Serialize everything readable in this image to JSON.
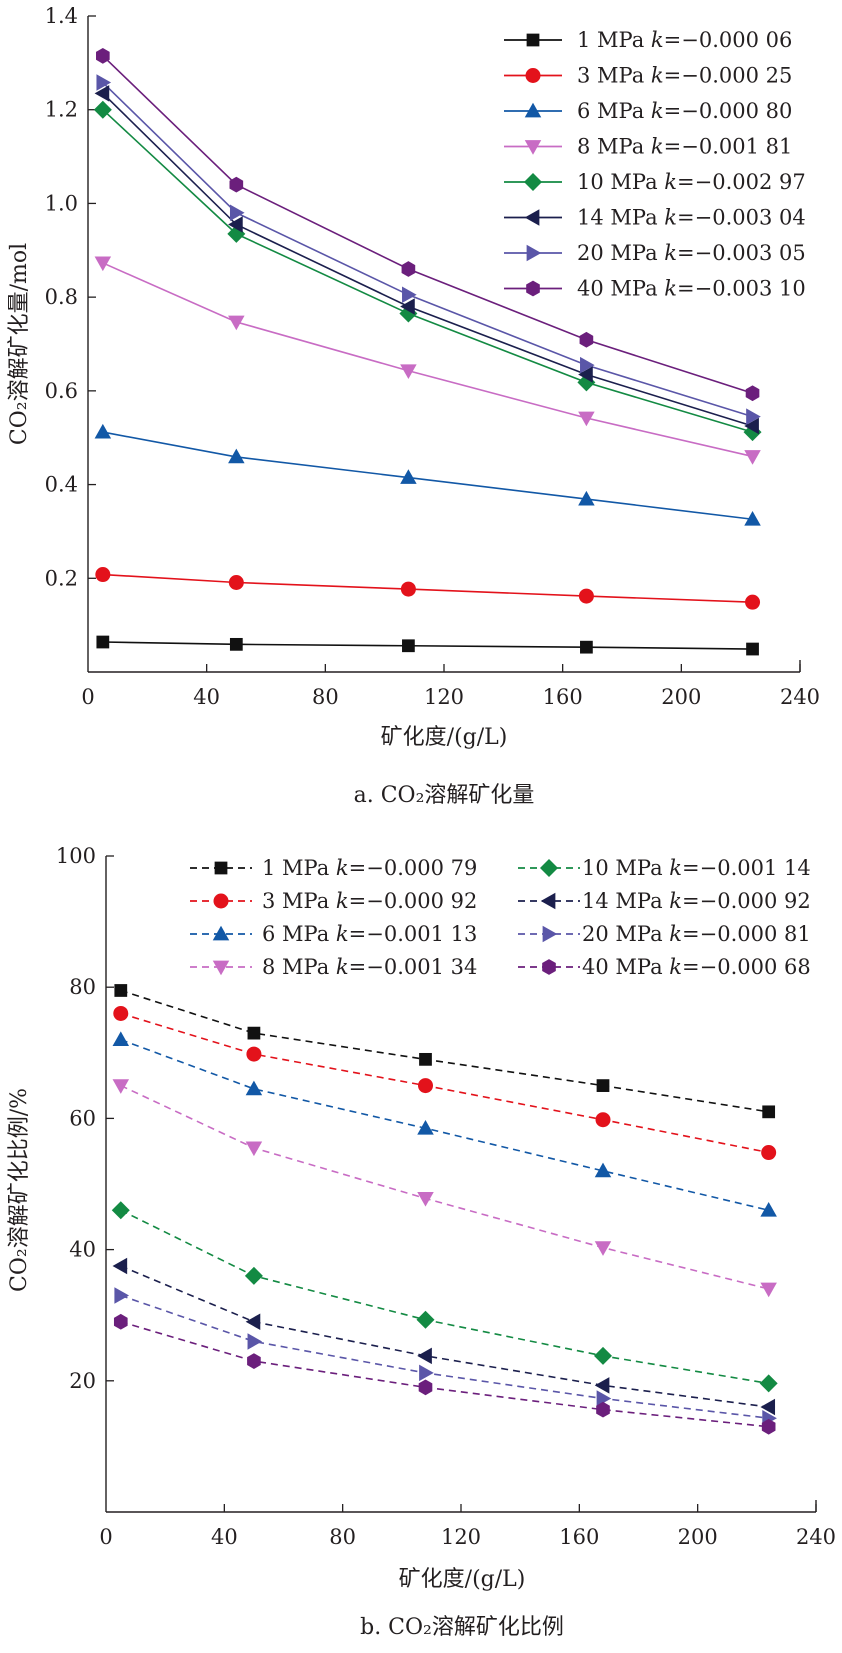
{
  "chart_data": [
    {
      "type": "line",
      "caption": "a. CO₂溶解矿化量",
      "xlabel": "矿化度/(g/L)",
      "ylabel": "CO₂溶解矿化量/mol",
      "xlim": [
        0,
        240
      ],
      "ylim": [
        0,
        1.4
      ],
      "xticks": [
        "0",
        "40",
        "80",
        "120",
        "160",
        "200",
        "240"
      ],
      "yticks": [
        "0.2",
        "0.4",
        "0.6",
        "0.8",
        "1.0",
        "1.2",
        "1.4"
      ],
      "legend_position": "top-right",
      "x": [
        5,
        50,
        108,
        168,
        224
      ],
      "series": [
        {
          "name": "1 MPa k=−0.000 06",
          "label_pre": "1 MPa ",
          "label_k": "k",
          "label_post": "=−0.000 06",
          "color": "#111111",
          "marker": "square",
          "values": [
            0.064,
            0.059,
            0.056,
            0.053,
            0.049
          ]
        },
        {
          "name": "3 MPa k=−0.000 25",
          "label_pre": "3 MPa ",
          "label_k": "k",
          "label_post": "=−0.000 25",
          "color": "#e3121b",
          "marker": "circle",
          "values": [
            0.208,
            0.191,
            0.177,
            0.162,
            0.149
          ]
        },
        {
          "name": "6 MPa k=−0.000 80",
          "label_pre": "6 MPa ",
          "label_k": "k",
          "label_post": "=−0.000 80",
          "color": "#1258a6",
          "marker": "triangle-up",
          "values": [
            0.512,
            0.459,
            0.415,
            0.369,
            0.326
          ]
        },
        {
          "name": "8 MPa k=−0.001 81",
          "label_pre": "8 MPa ",
          "label_k": "k",
          "label_post": "=−0.001 81",
          "color": "#c86cc4",
          "marker": "triangle-down",
          "values": [
            0.873,
            0.747,
            0.643,
            0.542,
            0.46
          ]
        },
        {
          "name": "10 MPa k=−0.002 97",
          "label_pre": "10 MPa ",
          "label_k": "k",
          "label_post": "=−0.002 97",
          "color": "#138a43",
          "marker": "diamond",
          "values": [
            1.2,
            0.935,
            0.765,
            0.618,
            0.512
          ]
        },
        {
          "name": "14 MPa k=−0.003 04",
          "label_pre": "14 MPa ",
          "label_k": "k",
          "label_post": "=−0.003 04",
          "color": "#1b1f4d",
          "marker": "triangle-left",
          "values": [
            1.235,
            0.955,
            0.78,
            0.635,
            0.525
          ]
        },
        {
          "name": "20 MPa k=−0.003 05",
          "label_pre": "20 MPa ",
          "label_k": "k",
          "label_post": "=−0.003 05",
          "color": "#5a56a8",
          "marker": "triangle-right",
          "values": [
            1.258,
            0.98,
            0.805,
            0.655,
            0.545
          ]
        },
        {
          "name": "40 MPa k=−0.003 10",
          "label_pre": "40 MPa ",
          "label_k": "k",
          "label_post": "=−0.003 10",
          "color": "#6b1f7c",
          "marker": "hexagon",
          "values": [
            1.315,
            1.04,
            0.86,
            0.709,
            0.595
          ]
        }
      ]
    },
    {
      "type": "line",
      "caption": "b. CO₂溶解矿化比例",
      "xlabel": "矿化度/(g/L)",
      "ylabel": "CO₂溶解矿化比例/%",
      "xlim": [
        0,
        240
      ],
      "ylim": [
        0,
        100
      ],
      "xticks": [
        "0",
        "40",
        "80",
        "120",
        "160",
        "200",
        "240"
      ],
      "yticks": [
        "20",
        "40",
        "60",
        "80",
        "100"
      ],
      "legend_position": "top",
      "dashed": true,
      "x": [
        5,
        50,
        108,
        168,
        224
      ],
      "series": [
        {
          "name": "1 MPa k=−0.000 79",
          "label_pre": "1 MPa ",
          "label_k": "k",
          "label_post": "=−0.000 79",
          "color": "#111111",
          "marker": "square",
          "values": [
            79.5,
            73,
            69,
            65,
            61
          ]
        },
        {
          "name": "3 MPa k=−0.000 92",
          "label_pre": "3 MPa ",
          "label_k": "k",
          "label_post": "=−0.000 92",
          "color": "#e3121b",
          "marker": "circle",
          "values": [
            76,
            69.8,
            65,
            59.8,
            54.8
          ]
        },
        {
          "name": "6 MPa k=−0.001 13",
          "label_pre": "6 MPa ",
          "label_k": "k",
          "label_post": "=−0.001 13",
          "color": "#1258a6",
          "marker": "triangle-up",
          "values": [
            72,
            64.5,
            58.5,
            52,
            46
          ]
        },
        {
          "name": "8 MPa k=−0.001 34",
          "label_pre": "8 MPa ",
          "label_k": "k",
          "label_post": "=−0.001 34",
          "color": "#c86cc4",
          "marker": "triangle-down",
          "values": [
            65,
            55.5,
            47.8,
            40.3,
            34
          ]
        },
        {
          "name": "10 MPa k=−0.001 14",
          "label_pre": "10 MPa ",
          "label_k": "k",
          "label_post": "=−0.001 14",
          "color": "#138a43",
          "marker": "diamond",
          "values": [
            46,
            36,
            29.3,
            23.8,
            19.6
          ]
        },
        {
          "name": "14 MPa k=−0.000 92",
          "label_pre": "14 MPa ",
          "label_k": "k",
          "label_post": "=−0.000 92",
          "color": "#1b1f4d",
          "marker": "triangle-left",
          "values": [
            37.5,
            29,
            23.8,
            19.3,
            16
          ]
        },
        {
          "name": "20 MPa k=−0.000 81",
          "label_pre": "20 MPa ",
          "label_k": "k",
          "label_post": "=−0.000 81",
          "color": "#5a56a8",
          "marker": "triangle-right",
          "values": [
            33,
            26,
            21.2,
            17.3,
            14.3
          ]
        },
        {
          "name": "40 MPa k=−0.000 68",
          "label_pre": "40 MPa ",
          "label_k": "k",
          "label_post": "=−0.000 68",
          "color": "#6b1f7c",
          "marker": "hexagon",
          "values": [
            29,
            23,
            19,
            15.6,
            13
          ]
        }
      ]
    }
  ]
}
